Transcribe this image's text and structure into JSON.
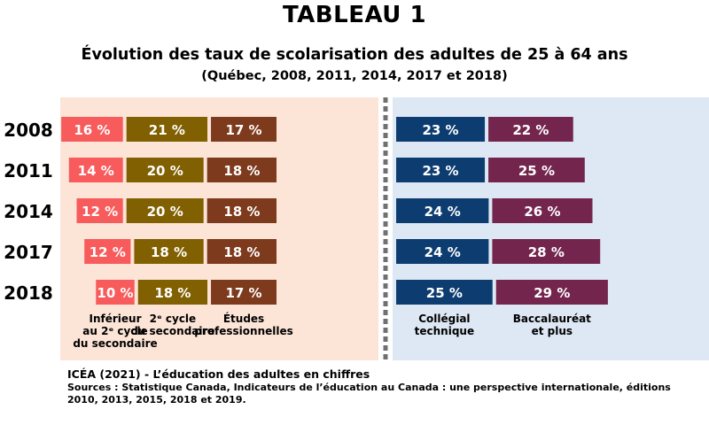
{
  "header": {
    "title": "TABLEAU 1",
    "subtitle": "Évolution des taux de scolarisation des adultes de 25 à 64 ans",
    "subsubtitle": "(Québec, 2008, 2011, 2014, 2017 et 2018)"
  },
  "footer": {
    "source_line": "ICÉA (2021) - L’éducation des adultes en chiffres",
    "sources": "Sources : Statistique Canada, Indicateurs de l’éducation au Canada : une perspective internationale, éditions 2010, 2013, 2015, 2018 et 2019."
  },
  "chart_data": {
    "type": "bar",
    "layout": "horizontal grouped bars, two panels (left: pre-college levels, right: college/university levels)",
    "years": [
      "2008",
      "2011",
      "2014",
      "2017",
      "2018"
    ],
    "series": [
      {
        "name_lines": [
          "Inférieur",
          "au 2ᵉ cycle",
          "du secondaire"
        ],
        "panel": "left",
        "color": "#f85b5c",
        "values": [
          16,
          14,
          12,
          12,
          10
        ],
        "labels": [
          "16 %",
          "14 %",
          "12 %",
          "12 %",
          "10 %"
        ]
      },
      {
        "name_lines": [
          "2ᵉ cycle",
          "du secondaire"
        ],
        "panel": "left",
        "color": "#806000",
        "values": [
          21,
          20,
          20,
          18,
          18
        ],
        "labels": [
          "21 %",
          "20 %",
          "20 %",
          "18 %",
          "18 %"
        ]
      },
      {
        "name_lines": [
          "Études",
          "professionnelles"
        ],
        "panel": "left",
        "color": "#7e3a1d",
        "values": [
          17,
          18,
          18,
          18,
          17
        ],
        "labels": [
          "17 %",
          "18 %",
          "18 %",
          "18 %",
          "17 %"
        ]
      },
      {
        "name_lines": [
          "Collégial",
          "technique"
        ],
        "panel": "right",
        "color": "#0d3d70",
        "values": [
          23,
          23,
          24,
          24,
          25
        ],
        "labels": [
          "23 %",
          "23 %",
          "24 %",
          "24 %",
          "25 %"
        ]
      },
      {
        "name_lines": [
          "Baccalauréat",
          "et plus"
        ],
        "panel": "right",
        "color": "#74254e",
        "values": [
          22,
          25,
          26,
          28,
          29
        ],
        "labels": [
          "22 %",
          "25 %",
          "26 %",
          "28 %",
          "29 %"
        ]
      }
    ],
    "colors": {
      "left_panel_bg": "#fce4d7",
      "right_panel_bg": "#dde8f4",
      "divider": "#707070"
    }
  }
}
